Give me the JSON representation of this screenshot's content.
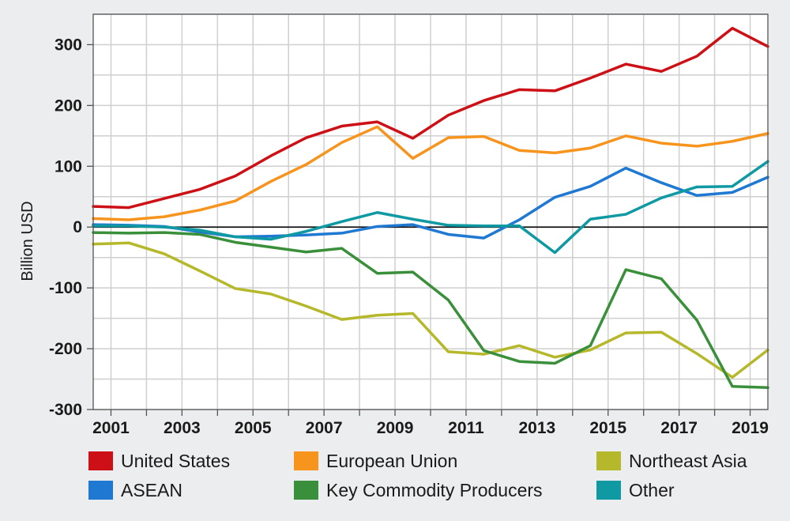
{
  "chart_data": {
    "type": "line",
    "title": "",
    "xlabel": "",
    "ylabel": "Billion USD",
    "ylim": [
      -300,
      350
    ],
    "xlim": [
      2000.5,
      2019.5
    ],
    "yticks": [
      300,
      200,
      100,
      0,
      -100,
      -200,
      -300
    ],
    "xtick_labels": [
      "2001",
      "2003",
      "2005",
      "2007",
      "2009",
      "2011",
      "2013",
      "2015",
      "2017",
      "2019"
    ],
    "grid": true,
    "legend_position": "bottom",
    "x": [
      2001,
      2002,
      2003,
      2004,
      2005,
      2006,
      2007,
      2008,
      2009,
      2010,
      2011,
      2012,
      2013,
      2014,
      2015,
      2016,
      2017,
      2018,
      2019,
      2020
    ],
    "series": [
      {
        "name": "United States",
        "color": "#cc1016",
        "values": [
          34,
          32,
          47,
          62,
          84,
          117,
          147,
          166,
          173,
          146,
          184,
          208,
          226,
          224,
          245,
          268,
          256,
          281,
          327,
          297
        ]
      },
      {
        "name": "European Union",
        "color": "#f7941d",
        "values": [
          14,
          12,
          17,
          28,
          43,
          75,
          103,
          139,
          165,
          113,
          147,
          149,
          126,
          122,
          130,
          150,
          138,
          133,
          141,
          154
        ]
      },
      {
        "name": "Northeast Asia",
        "color": "#b5b82a",
        "values": [
          -28,
          -26,
          -44,
          -72,
          -101,
          -110,
          -130,
          -152,
          -145,
          -142,
          -205,
          -209,
          -195,
          -214,
          -202,
          -174,
          -173,
          -208,
          -247,
          -202
        ]
      },
      {
        "name": "ASEAN",
        "color": "#1f78d1",
        "values": [
          4,
          3,
          1,
          -8,
          -16,
          -15,
          -13,
          -10,
          1,
          4,
          -12,
          -18,
          12,
          49,
          67,
          97,
          73,
          52,
          57,
          82
        ]
      },
      {
        "name": "Key Commodity Producers",
        "color": "#3a8f3a",
        "values": [
          -9,
          -10,
          -9,
          -12,
          -25,
          -33,
          -41,
          -35,
          -76,
          -74,
          -120,
          -203,
          -221,
          -224,
          -195,
          -70,
          -85,
          -153,
          -262,
          -264
        ]
      },
      {
        "name": "Other",
        "color": "#0f9aa3",
        "values": [
          2,
          2,
          0,
          -5,
          -16,
          -20,
          -7,
          9,
          24,
          13,
          3,
          2,
          2,
          -42,
          13,
          21,
          48,
          66,
          67,
          108
        ]
      }
    ]
  }
}
